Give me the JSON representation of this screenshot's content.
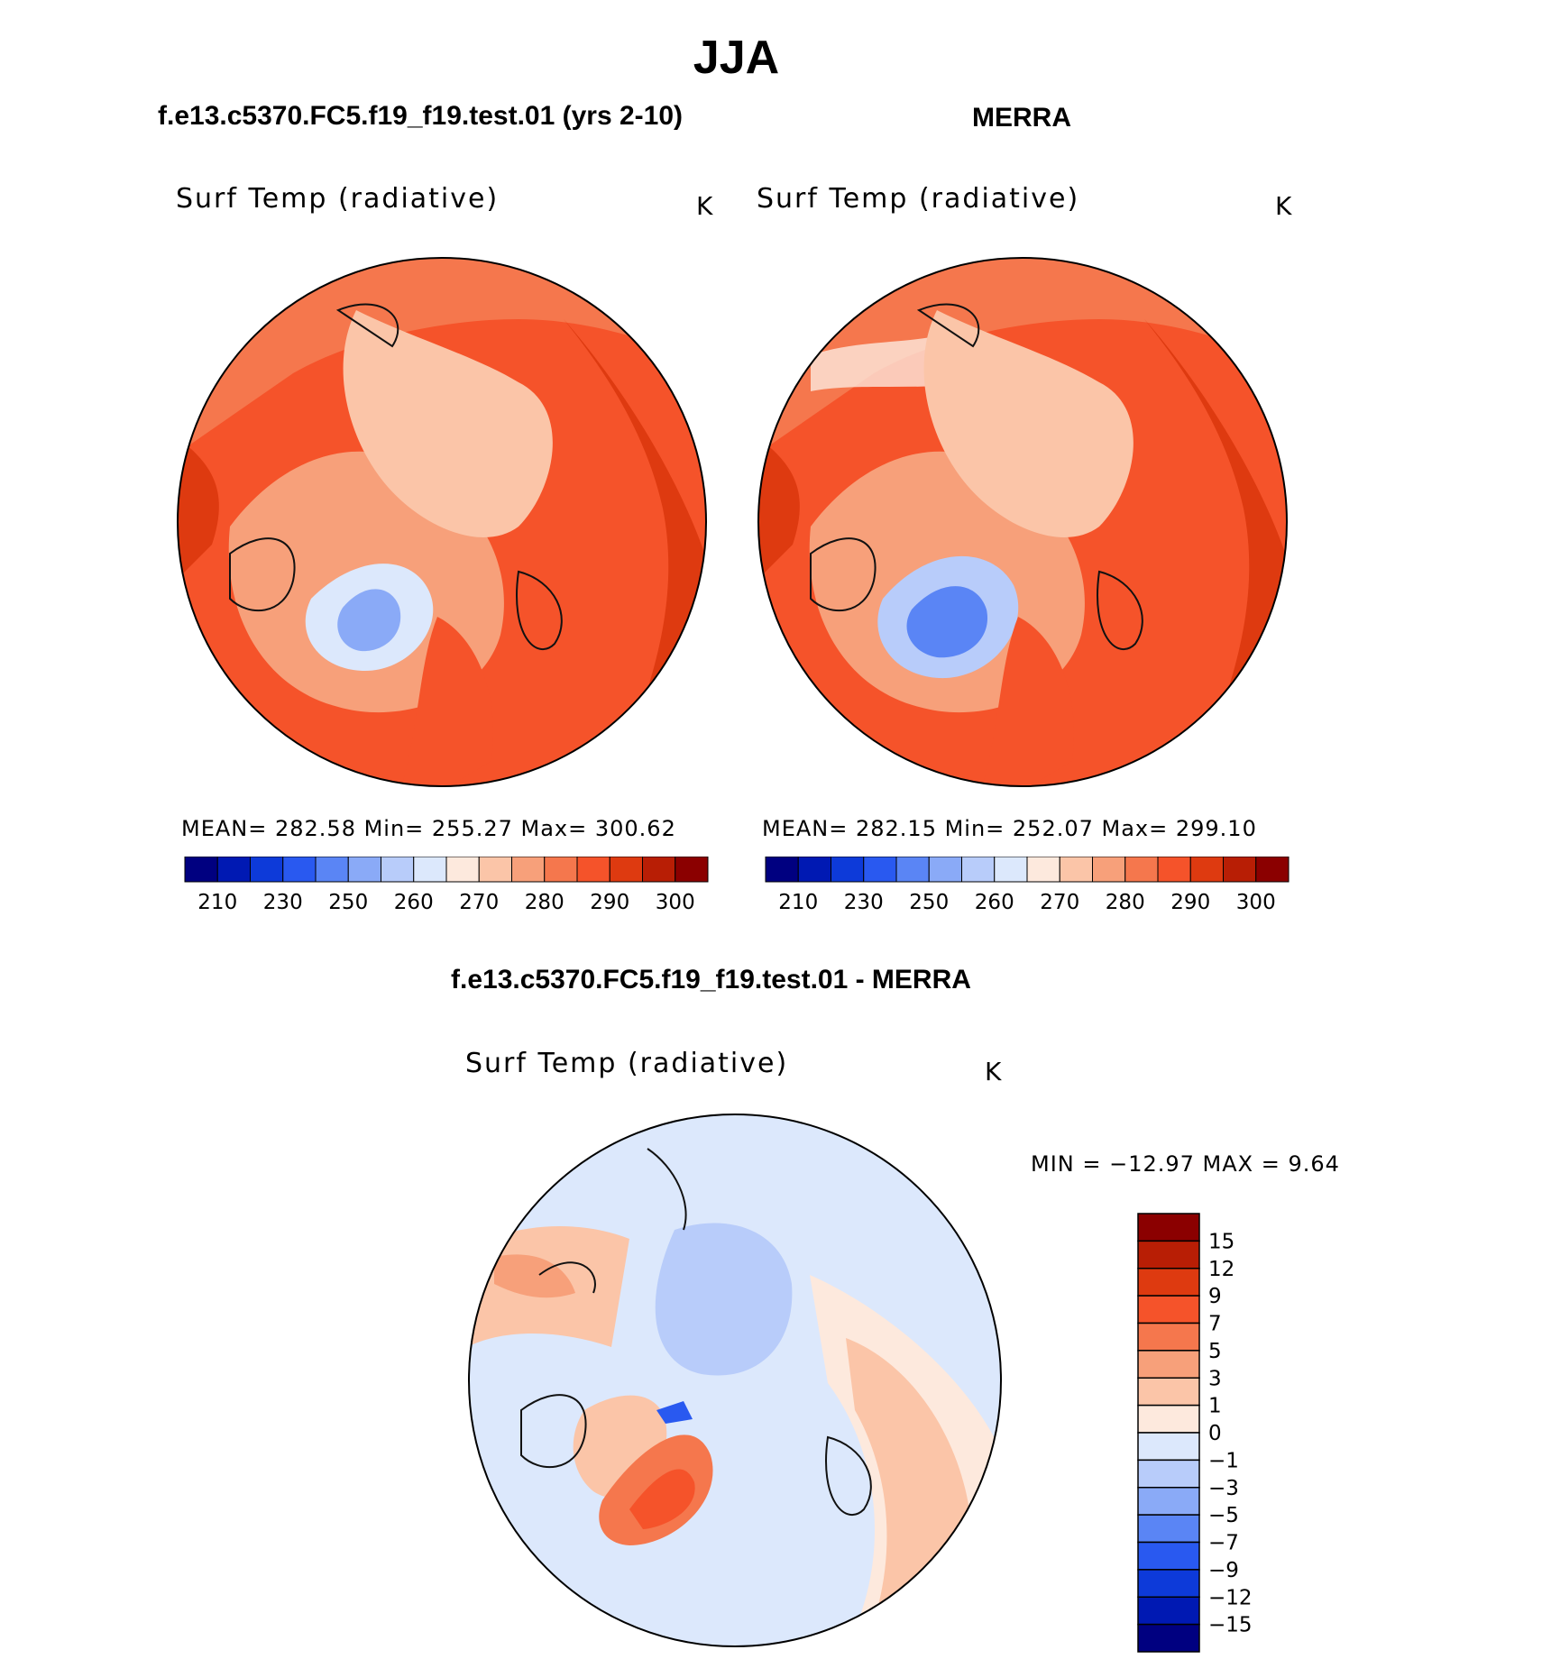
{
  "figure": {
    "title": "JJA"
  },
  "panels": [
    {
      "case_title": "f.e13.c5370.FC5.f19_f19.test.01 (yrs 2-10)",
      "variable": "Surf Temp (radiative)",
      "units": "K",
      "stats": {
        "mean": "282.58",
        "min": "255.27",
        "max": "300.62"
      },
      "stats_text": "MEAN= 282.58    Min= 255.27    Max= 300.62"
    },
    {
      "case_title": "MERRA",
      "variable": "Surf Temp (radiative)",
      "units": "K",
      "stats": {
        "mean": "282.15",
        "min": "252.07",
        "max": "299.10"
      },
      "stats_text": "MEAN= 282.15    Min= 252.07    Max= 299.10"
    }
  ],
  "difference_panel": {
    "case_title": "f.e13.c5370.FC5.f19_f19.test.01 - MERRA",
    "variable": "Surf Temp (radiative)",
    "units": "K",
    "stats": {
      "min": "−12.97",
      "max": "9.64"
    },
    "stats_text": "MIN = −12.97 MAX =    9.64"
  },
  "chart_data": [
    {
      "type": "heatmap",
      "projection": "north polar stereographic",
      "title": "Surf Temp (radiative)",
      "units": "K",
      "stats": {
        "mean": 282.58,
        "min": 255.27,
        "max": 300.62
      },
      "colorbar": {
        "orientation": "horizontal",
        "tick_labels": [
          "210",
          "230",
          "250",
          "260",
          "270",
          "280",
          "290",
          "300"
        ],
        "colors": [
          "#000080",
          "#0019b3",
          "#0d3ad9",
          "#2959f0",
          "#5a85f5",
          "#8aaaf7",
          "#b8ccfa",
          "#dce8fc",
          "#fde9dd",
          "#fbc5a8",
          "#f7a07a",
          "#f5774d",
          "#f5532a",
          "#de3a10",
          "#b81e05",
          "#8b0000"
        ]
      }
    },
    {
      "type": "heatmap",
      "projection": "north polar stereographic",
      "title": "Surf Temp (radiative)",
      "units": "K",
      "stats": {
        "mean": 282.15,
        "min": 252.07,
        "max": 299.1
      },
      "colorbar": {
        "orientation": "horizontal",
        "tick_labels": [
          "210",
          "230",
          "250",
          "260",
          "270",
          "280",
          "290",
          "300"
        ],
        "colors": [
          "#000080",
          "#0019b3",
          "#0d3ad9",
          "#2959f0",
          "#5a85f5",
          "#8aaaf7",
          "#b8ccfa",
          "#dce8fc",
          "#fde9dd",
          "#fbc5a8",
          "#f7a07a",
          "#f5774d",
          "#f5532a",
          "#de3a10",
          "#b81e05",
          "#8b0000"
        ]
      }
    },
    {
      "type": "heatmap",
      "projection": "north polar stereographic",
      "title": "Surf Temp (radiative)",
      "units": "K",
      "stats": {
        "min": -12.97,
        "max": 9.64
      },
      "colorbar": {
        "orientation": "vertical",
        "tick_labels": [
          "15",
          "12",
          "9",
          "7",
          "5",
          "3",
          "1",
          "0",
          "−1",
          "−3",
          "−5",
          "−7",
          "−9",
          "−12",
          "−15"
        ],
        "colors": [
          "#8b0000",
          "#b81e05",
          "#de3a10",
          "#f5532a",
          "#f5774d",
          "#f7a07a",
          "#fbc5a8",
          "#fde9dd",
          "#dce8fc",
          "#b8ccfa",
          "#8aaaf7",
          "#5a85f5",
          "#2959f0",
          "#0d3ad9",
          "#0019b3",
          "#000080"
        ]
      }
    }
  ]
}
